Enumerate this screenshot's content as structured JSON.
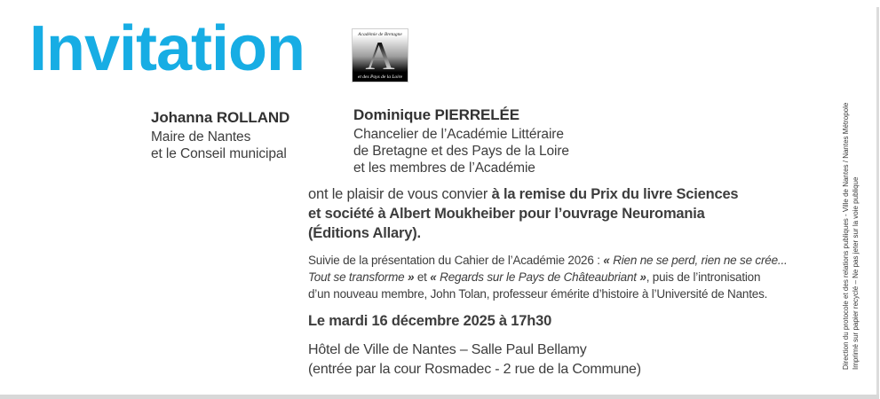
{
  "page": {
    "title_label": "Invitation",
    "accent_color": "#17ade4",
    "text_color": "#3d3d3d"
  },
  "logo": {
    "top_label": "Académie de Bretagne",
    "letter": "A",
    "bottom_label": "et des Pays de la Loire"
  },
  "hosts": {
    "left": {
      "name": "Johanna ROLLAND",
      "lines": [
        "Maire de Nantes",
        "et le Conseil municipal"
      ]
    },
    "right": {
      "name": "Dominique PIERRELÉE",
      "lines": [
        "Chancelier de l’Académie Littéraire",
        "de Bretagne et des Pays de la Loire",
        "et les membres de l’Académie"
      ]
    }
  },
  "body": {
    "invite_regular": "ont le plaisir de vous convier ",
    "invite_bold": "à la remise du Prix du livre Sciences\net société à Albert Moukheiber pour l’ouvrage Neuromania\n(Éditions Allary).",
    "program_intro": "Suivie de la présentation du Cahier de l’Académie 2026 : ",
    "quote1_open": "« ",
    "quote1_text": "Rien ne se perd, rien ne se crée...\nTout se transforme",
    "quote1_close": " »",
    "program_and": " et ",
    "quote2_open": "« ",
    "quote2_text": "Regards sur le Pays de Châteaubriant",
    "quote2_close": " »",
    "program_rest": ", puis de l’intronisation\nd’un nouveau membre, John Tolan, professeur émérite d’histoire à l’Université de Nantes.",
    "date_line": "Le mardi 16 décembre 2025 à 17h30",
    "venue_line1": "Hôtel de Ville de Nantes – Salle Paul Bellamy",
    "venue_line2": "(entrée par la cour Rosmadec - 2 rue de la Commune)"
  },
  "sidebar": {
    "credit_line": "Direction du protocole et des relations publiques - Ville de Nantes / Nantes Métropole",
    "print_line": "Imprimé sur papier recyclé – Ne pas jeter sur la voie publique"
  }
}
